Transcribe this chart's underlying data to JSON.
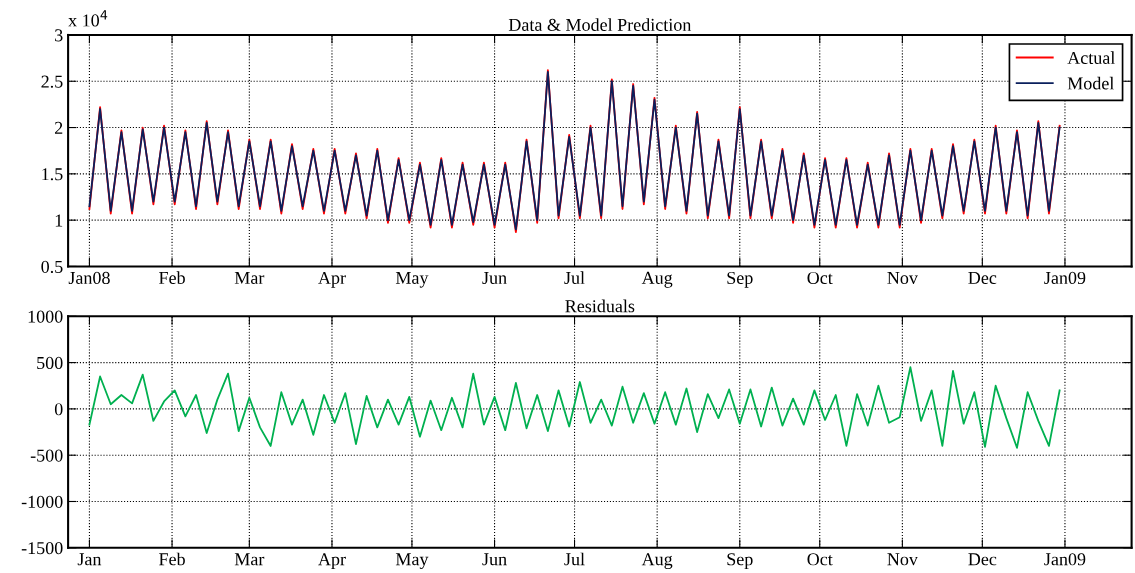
{
  "chart_data": [
    {
      "type": "line",
      "title": "Data & Model Prediction",
      "annotations": [
        "x 10$^{4}$"
      ],
      "x": [
        "2008-01-01",
        "2008-01-05",
        "2008-01-09",
        "2008-01-13",
        "2008-01-17",
        "2008-01-21",
        "2008-01-25",
        "2008-01-29",
        "2008-02-02",
        "2008-02-06",
        "2008-02-10",
        "2008-02-14",
        "2008-02-18",
        "2008-02-22",
        "2008-02-26",
        "2008-03-01",
        "2008-03-05",
        "2008-03-09",
        "2008-03-13",
        "2008-03-17",
        "2008-03-21",
        "2008-03-25",
        "2008-03-29",
        "2008-04-02",
        "2008-04-06",
        "2008-04-10",
        "2008-04-14",
        "2008-04-18",
        "2008-04-22",
        "2008-04-26",
        "2008-04-30",
        "2008-05-04",
        "2008-05-08",
        "2008-05-12",
        "2008-05-16",
        "2008-05-20",
        "2008-05-24",
        "2008-05-28",
        "2008-06-01",
        "2008-06-05",
        "2008-06-09",
        "2008-06-13",
        "2008-06-17",
        "2008-06-21",
        "2008-06-25",
        "2008-06-29",
        "2008-07-03",
        "2008-07-07",
        "2008-07-11",
        "2008-07-15",
        "2008-07-19",
        "2008-07-23",
        "2008-07-27",
        "2008-07-31",
        "2008-08-04",
        "2008-08-08",
        "2008-08-12",
        "2008-08-16",
        "2008-08-20",
        "2008-08-24",
        "2008-08-28",
        "2008-09-01",
        "2008-09-05",
        "2008-09-09",
        "2008-09-13",
        "2008-09-17",
        "2008-09-21",
        "2008-09-25",
        "2008-09-29",
        "2008-10-03",
        "2008-10-07",
        "2008-10-11",
        "2008-10-15",
        "2008-10-19",
        "2008-10-23",
        "2008-10-27",
        "2008-10-31",
        "2008-11-04",
        "2008-11-08",
        "2008-11-12",
        "2008-11-16",
        "2008-11-20",
        "2008-11-24",
        "2008-11-28",
        "2008-12-02",
        "2008-12-06",
        "2008-12-10",
        "2008-12-14",
        "2008-12-18",
        "2008-12-22",
        "2008-12-26",
        "2008-12-30"
      ],
      "series": [
        {
          "name": "Actual",
          "color": "#ff0000",
          "values": [
            1.12,
            2.22,
            1.07,
            1.97,
            1.07,
            2.0,
            1.17,
            2.02,
            1.17,
            1.97,
            1.12,
            2.07,
            1.17,
            1.97,
            1.12,
            1.87,
            1.12,
            1.87,
            1.07,
            1.82,
            1.12,
            1.77,
            1.07,
            1.77,
            1.07,
            1.72,
            1.02,
            1.77,
            0.97,
            1.67,
            0.97,
            1.62,
            0.92,
            1.67,
            0.92,
            1.62,
            0.95,
            1.62,
            0.92,
            1.62,
            0.87,
            1.87,
            0.97,
            2.62,
            1.02,
            1.92,
            1.02,
            2.02,
            1.02,
            2.52,
            1.12,
            2.47,
            1.17,
            2.32,
            1.12,
            2.02,
            1.07,
            2.17,
            1.02,
            1.87,
            1.02,
            2.22,
            1.02,
            1.87,
            1.02,
            1.77,
            0.97,
            1.72,
            0.92,
            1.67,
            0.92,
            1.67,
            0.92,
            1.62,
            0.92,
            1.72,
            0.92,
            1.77,
            0.97,
            1.77,
            1.02,
            1.82,
            1.07,
            1.87,
            1.07,
            2.02,
            1.07,
            1.97,
            1.02,
            2.07,
            1.07,
            2.02
          ]
        },
        {
          "name": "Model",
          "color": "#0a1f5c",
          "values": [
            1.15,
            2.2,
            1.1,
            1.95,
            1.1,
            1.98,
            1.2,
            2.0,
            1.2,
            1.95,
            1.15,
            2.05,
            1.2,
            1.95,
            1.15,
            1.85,
            1.15,
            1.85,
            1.1,
            1.8,
            1.15,
            1.75,
            1.1,
            1.75,
            1.1,
            1.7,
            1.05,
            1.75,
            1.0,
            1.65,
            1.0,
            1.6,
            0.95,
            1.65,
            0.95,
            1.6,
            0.98,
            1.6,
            0.95,
            1.6,
            0.9,
            1.85,
            1.0,
            2.6,
            1.05,
            1.9,
            1.05,
            2.0,
            1.05,
            2.5,
            1.15,
            2.45,
            1.2,
            2.3,
            1.15,
            2.0,
            1.1,
            2.15,
            1.05,
            1.85,
            1.05,
            2.2,
            1.05,
            1.85,
            1.05,
            1.75,
            1.0,
            1.7,
            0.95,
            1.65,
            0.95,
            1.65,
            0.95,
            1.6,
            0.95,
            1.7,
            0.95,
            1.75,
            1.0,
            1.75,
            1.05,
            1.8,
            1.1,
            1.85,
            1.1,
            2.0,
            1.1,
            1.95,
            1.05,
            2.05,
            1.1,
            2.0
          ]
        }
      ],
      "xlim": [
        "2007-12-24",
        "2009-01-26"
      ],
      "xticks": [
        {
          "value": "2008-01-01",
          "label": "Jan08"
        },
        {
          "value": "2008-02-01",
          "label": "Feb"
        },
        {
          "value": "2008-03-01",
          "label": "Mar"
        },
        {
          "value": "2008-04-01",
          "label": "Apr"
        },
        {
          "value": "2008-05-01",
          "label": "May"
        },
        {
          "value": "2008-06-01",
          "label": "Jun"
        },
        {
          "value": "2008-07-01",
          "label": "Jul"
        },
        {
          "value": "2008-08-01",
          "label": "Aug"
        },
        {
          "value": "2008-09-01",
          "label": "Sep"
        },
        {
          "value": "2008-10-01",
          "label": "Oct"
        },
        {
          "value": "2008-11-01",
          "label": "Nov"
        },
        {
          "value": "2008-12-01",
          "label": "Dec"
        },
        {
          "value": "2009-01-01",
          "label": "Jan09"
        }
      ],
      "ylim": [
        0.5,
        3
      ],
      "yticks": [
        0.5,
        1,
        1.5,
        2,
        2.5,
        3
      ],
      "grid": true,
      "legend": "top right"
    },
    {
      "type": "line",
      "title": "Residuals",
      "x": [
        "2008-01-01",
        "2008-01-05",
        "2008-01-09",
        "2008-01-13",
        "2008-01-17",
        "2008-01-21",
        "2008-01-25",
        "2008-01-29",
        "2008-02-02",
        "2008-02-06",
        "2008-02-10",
        "2008-02-14",
        "2008-02-18",
        "2008-02-22",
        "2008-02-26",
        "2008-03-01",
        "2008-03-05",
        "2008-03-09",
        "2008-03-13",
        "2008-03-17",
        "2008-03-21",
        "2008-03-25",
        "2008-03-29",
        "2008-04-02",
        "2008-04-06",
        "2008-04-10",
        "2008-04-14",
        "2008-04-18",
        "2008-04-22",
        "2008-04-26",
        "2008-04-30",
        "2008-05-04",
        "2008-05-08",
        "2008-05-12",
        "2008-05-16",
        "2008-05-20",
        "2008-05-24",
        "2008-05-28",
        "2008-06-01",
        "2008-06-05",
        "2008-06-09",
        "2008-06-13",
        "2008-06-17",
        "2008-06-21",
        "2008-06-25",
        "2008-06-29",
        "2008-07-03",
        "2008-07-07",
        "2008-07-11",
        "2008-07-15",
        "2008-07-19",
        "2008-07-23",
        "2008-07-27",
        "2008-07-31",
        "2008-08-04",
        "2008-08-08",
        "2008-08-12",
        "2008-08-16",
        "2008-08-20",
        "2008-08-24",
        "2008-08-28",
        "2008-09-01",
        "2008-09-05",
        "2008-09-09",
        "2008-09-13",
        "2008-09-17",
        "2008-09-21",
        "2008-09-25",
        "2008-09-29",
        "2008-10-03",
        "2008-10-07",
        "2008-10-11",
        "2008-10-15",
        "2008-10-19",
        "2008-10-23",
        "2008-10-27",
        "2008-10-31",
        "2008-11-04",
        "2008-11-08",
        "2008-11-12",
        "2008-11-16",
        "2008-11-20",
        "2008-11-24",
        "2008-11-28",
        "2008-12-02",
        "2008-12-06",
        "2008-12-10",
        "2008-12-14",
        "2008-12-18",
        "2008-12-22",
        "2008-12-26",
        "2008-12-30"
      ],
      "series": [
        {
          "color": "#00b050",
          "values": [
            -170,
            350,
            50,
            150,
            60,
            370,
            -130,
            80,
            200,
            -80,
            150,
            -260,
            100,
            380,
            -240,
            120,
            -200,
            -400,
            180,
            -170,
            100,
            -280,
            150,
            -150,
            170,
            -380,
            140,
            -200,
            100,
            -170,
            130,
            -300,
            90,
            -230,
            120,
            -200,
            380,
            -170,
            130,
            -230,
            280,
            -210,
            150,
            -240,
            200,
            -190,
            290,
            -150,
            100,
            -180,
            240,
            -150,
            170,
            -160,
            180,
            -170,
            220,
            -250,
            160,
            -100,
            210,
            -160,
            210,
            -190,
            230,
            -180,
            110,
            -170,
            200,
            -120,
            150,
            -400,
            160,
            -180,
            250,
            -150,
            -90,
            450,
            -130,
            200,
            -400,
            410,
            -160,
            180,
            -410,
            250,
            -100,
            -420,
            180,
            -130,
            -400,
            200
          ]
        }
      ],
      "xlim": [
        "2007-12-24",
        "2009-01-26"
      ],
      "xticks": [
        {
          "value": "2008-01-01",
          "label": "Jan"
        },
        {
          "value": "2008-02-01",
          "label": "Feb"
        },
        {
          "value": "2008-03-01",
          "label": "Mar"
        },
        {
          "value": "2008-04-01",
          "label": "Apr"
        },
        {
          "value": "2008-05-01",
          "label": "May"
        },
        {
          "value": "2008-06-01",
          "label": "Jun"
        },
        {
          "value": "2008-07-01",
          "label": "Jul"
        },
        {
          "value": "2008-08-01",
          "label": "Aug"
        },
        {
          "value": "2008-09-01",
          "label": "Sep"
        },
        {
          "value": "2008-10-01",
          "label": "Oct"
        },
        {
          "value": "2008-11-01",
          "label": "Nov"
        },
        {
          "value": "2008-12-01",
          "label": "Dec"
        },
        {
          "value": "2009-01-01",
          "label": "Jan09"
        }
      ],
      "ylim": [
        -1500,
        1000
      ],
      "yticks": [
        -1500,
        -1000,
        -500,
        0,
        500,
        1000
      ],
      "grid": true
    }
  ]
}
